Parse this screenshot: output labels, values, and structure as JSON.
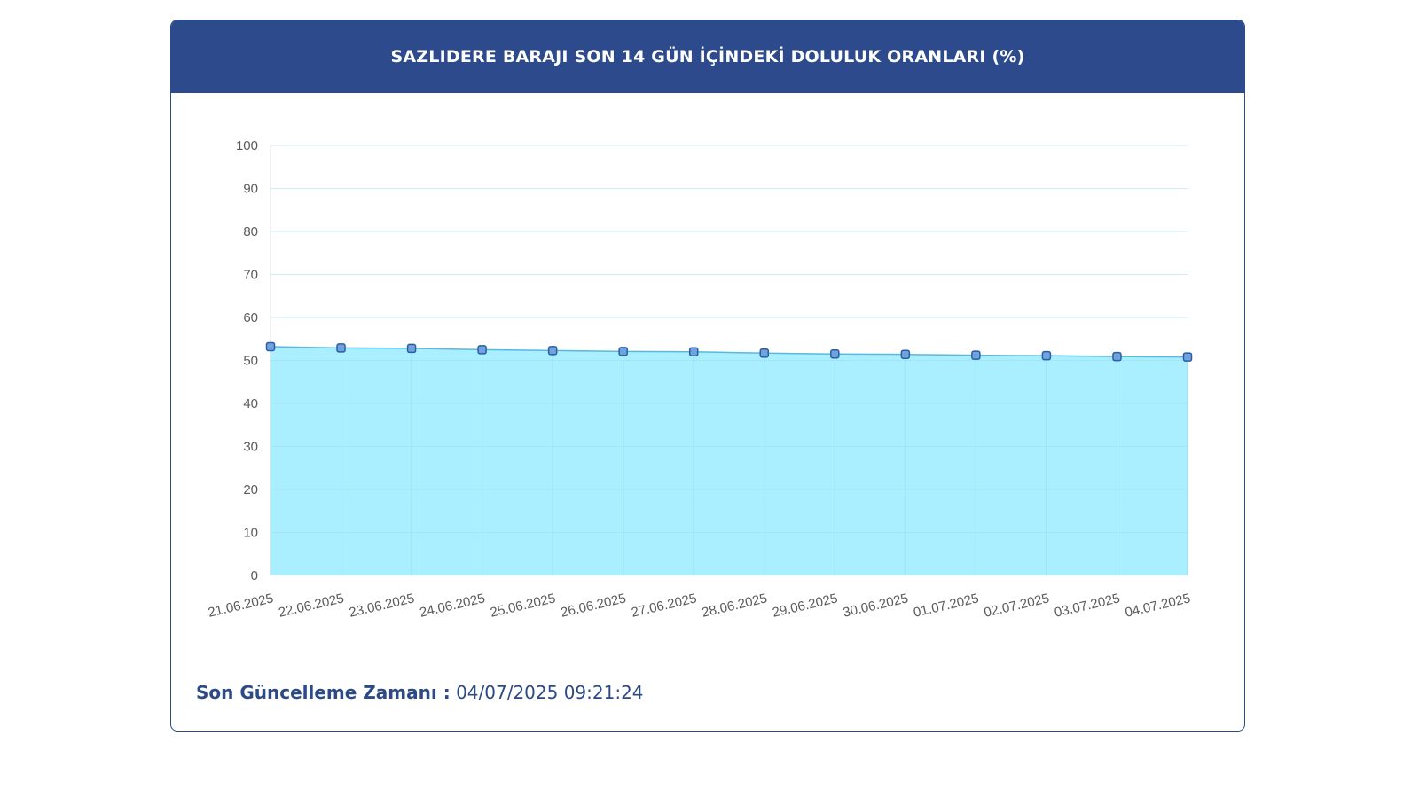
{
  "header": {
    "title": "SAZLIDERE BARAJI SON 14 GÜN İÇİNDEKİ DOLULUK ORANLARI (%)"
  },
  "footer": {
    "label": "Son Güncelleme Zamanı :",
    "value": "04/07/2025 09:21:24"
  },
  "colors": {
    "header_bg": "#2c4a8c",
    "area_fill": "#aaefff",
    "line": "#58b8de",
    "marker_fill": "#6fa3de",
    "marker_stroke": "#2b5da6"
  },
  "chart_data": {
    "type": "area",
    "categories": [
      "21.06.2025",
      "22.06.2025",
      "23.06.2025",
      "24.06.2025",
      "25.06.2025",
      "26.06.2025",
      "27.06.2025",
      "28.06.2025",
      "29.06.2025",
      "30.06.2025",
      "01.07.2025",
      "02.07.2025",
      "03.07.2025",
      "04.07.2025"
    ],
    "series": [
      {
        "values": [
          53.2,
          52.9,
          52.8,
          52.5,
          52.3,
          52.1,
          52.0,
          51.7,
          51.5,
          51.4,
          51.2,
          51.1,
          50.9,
          50.8
        ]
      }
    ],
    "ylim": [
      0,
      100
    ],
    "yticks": [
      "0",
      "10",
      "20",
      "30",
      "40",
      "50",
      "60",
      "70",
      "80",
      "90",
      "100"
    ],
    "grid": true,
    "xlabel": "",
    "ylabel": ""
  }
}
